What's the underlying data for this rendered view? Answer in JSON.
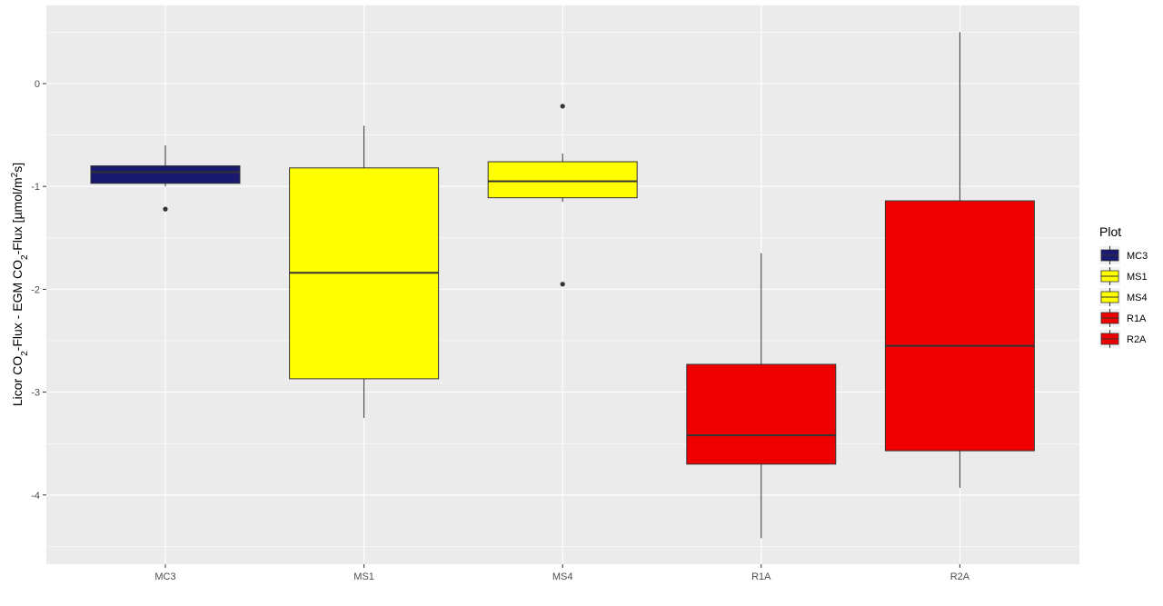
{
  "chart_data": {
    "type": "boxplot",
    "ylabel_parts": [
      {
        "text": "Licor CO",
        "sub": false
      },
      {
        "text": "2",
        "sub": true
      },
      {
        "text": "-Flux - EGM CO",
        "sub": false
      },
      {
        "text": "2",
        "sub": true
      },
      {
        "text": "-Flux [µmol/m",
        "sub": false
      },
      {
        "text": "2",
        "sup": true
      },
      {
        "text": "s]",
        "sub": false
      }
    ],
    "ylim": [
      -4.5,
      0.5
    ],
    "yticks": [
      0,
      -1,
      -2,
      -3,
      -4
    ],
    "ytick_labels": [
      "0",
      "-1",
      "-2",
      "-3",
      "-4"
    ],
    "grid": true,
    "legend": {
      "title": "Plot",
      "placement": "right",
      "entries": [
        "MC3",
        "MS1",
        "MS4",
        "R1A",
        "R2A"
      ]
    },
    "series": [
      {
        "category": "MC3",
        "fill": "#191970",
        "whisker_low": -1.0,
        "q1": -0.97,
        "median": -0.86,
        "q3": -0.8,
        "whisker_high": -0.6,
        "outliers": [
          -1.22
        ]
      },
      {
        "category": "MS1",
        "fill": "#ffff00",
        "whisker_low": -3.25,
        "q1": -2.87,
        "median": -1.84,
        "q3": -0.82,
        "whisker_high": -0.41,
        "outliers": []
      },
      {
        "category": "MS4",
        "fill": "#ffff00",
        "whisker_low": -1.15,
        "q1": -1.11,
        "median": -0.95,
        "q3": -0.76,
        "whisker_high": -0.68,
        "outliers": [
          -0.22,
          -1.95
        ]
      },
      {
        "category": "R1A",
        "fill": "#ee0000",
        "whisker_low": -4.42,
        "q1": -3.7,
        "median": -3.42,
        "q3": -2.73,
        "whisker_high": -1.65,
        "outliers": []
      },
      {
        "category": "R2A",
        "fill": "#ee0000",
        "whisker_low": -3.93,
        "q1": -3.57,
        "median": -2.55,
        "q3": -1.14,
        "whisker_high": 0.5,
        "outliers": []
      }
    ],
    "colors": {
      "panel_background": "#ebebeb",
      "grid_major": "#ffffff",
      "box_outline": "#333333"
    }
  }
}
